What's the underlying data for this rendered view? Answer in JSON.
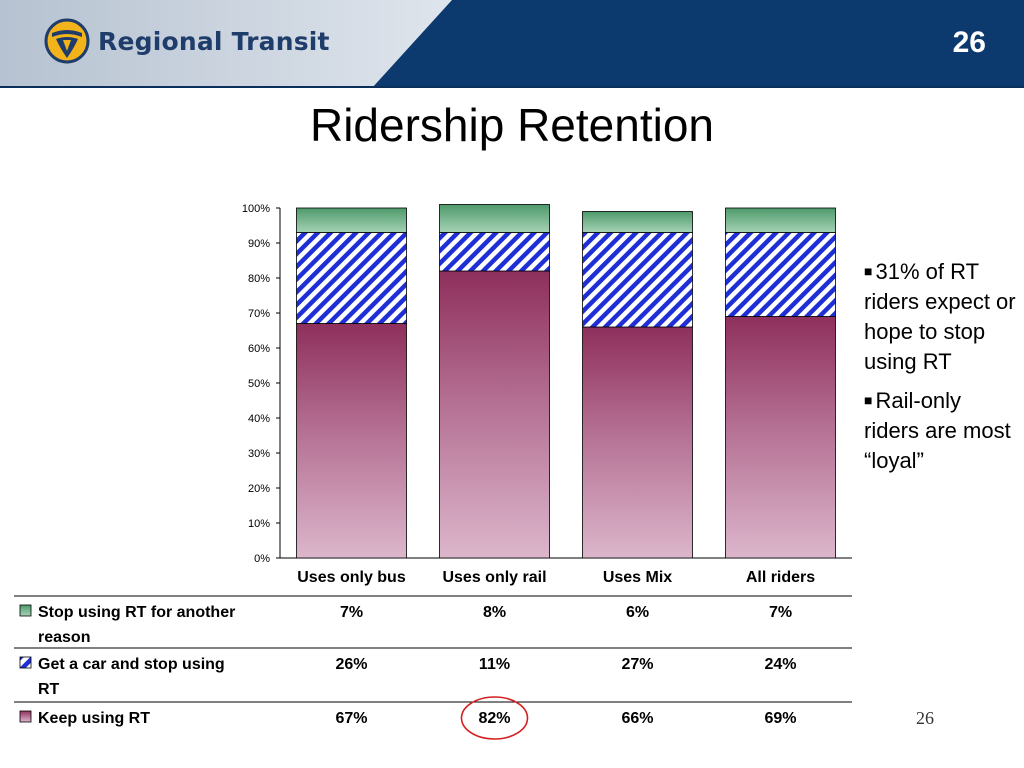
{
  "header": {
    "brand": "Regional Transit",
    "slide_number": "26",
    "colors": {
      "band": "#0d3a6e",
      "light": "#c9d2de",
      "logo_gold": "#f2b31b"
    },
    "logo_icon": "regional-transit-logo"
  },
  "title": "Ridership Retention",
  "bullets": [
    "31% of RT riders expect or hope to stop using RT",
    "Rail-only riders are most “loyal”"
  ],
  "page_number": "26",
  "chart_data": {
    "type": "bar",
    "stacked": true,
    "percent_stacked": true,
    "categories": [
      "Uses only bus",
      "Uses only rail",
      "Uses Mix",
      "All riders"
    ],
    "series": [
      {
        "name": "Keep using RT",
        "values": [
          67,
          82,
          66,
          69
        ],
        "labels": [
          "67%",
          "82%",
          "66%",
          "69%"
        ],
        "color": "#9e3a68",
        "pattern": "gradient"
      },
      {
        "name": "Get a car and stop using RT",
        "values": [
          26,
          11,
          27,
          24
        ],
        "labels": [
          "26%",
          "11%",
          "27%",
          "24%"
        ],
        "color": "#1f2fd6",
        "pattern": "diagonal-hatch"
      },
      {
        "name": "Stop using RT for another reason",
        "values": [
          7,
          8,
          6,
          7
        ],
        "labels": [
          "7%",
          "8%",
          "6%",
          "7%"
        ],
        "color": "#4e9a6c",
        "pattern": "gradient"
      }
    ],
    "yticks": [
      "0%",
      "10%",
      "20%",
      "30%",
      "40%",
      "50%",
      "60%",
      "70%",
      "80%",
      "90%",
      "100%"
    ],
    "ylim": [
      0,
      100
    ],
    "grid": false,
    "data_table": true,
    "highlight": {
      "series": "Keep using RT",
      "category": "Uses only rail",
      "color": "#d42020"
    }
  }
}
